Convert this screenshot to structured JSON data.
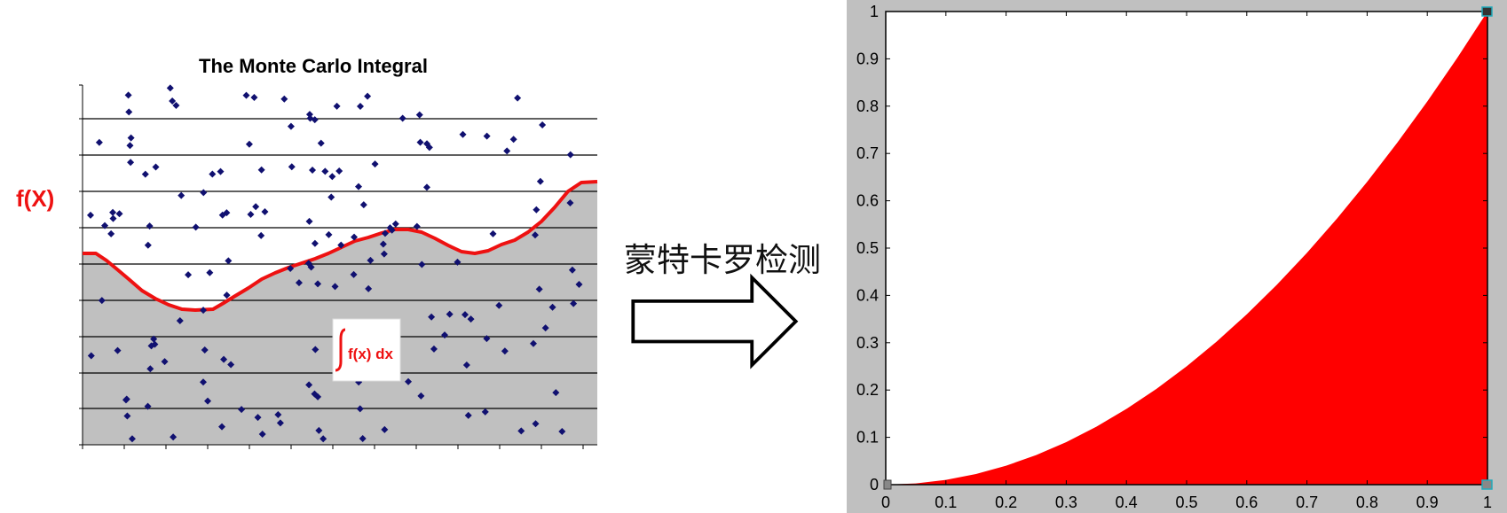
{
  "left_figure": {
    "title": "The Monte Carlo Integral",
    "function_label": "f(X)",
    "integral_label": "f(x) dx",
    "colors": {
      "curve": "#ee1111",
      "points": "#101070",
      "fill": "#c0c0c0",
      "label": "#ee1111"
    }
  },
  "arrow_caption": "蒙特卡罗检测",
  "chart_data": [
    {
      "type": "area",
      "title": "",
      "xlabel": "",
      "ylabel": "",
      "xlim": [
        0,
        1
      ],
      "ylim": [
        0,
        1
      ],
      "grid": false,
      "xticks": [
        "0",
        "0.1",
        "0.2",
        "0.3",
        "0.4",
        "0.5",
        "0.6",
        "0.7",
        "0.8",
        "0.9",
        "1"
      ],
      "yticks": [
        "0",
        "0.1",
        "0.2",
        "0.3",
        "0.4",
        "0.5",
        "0.6",
        "0.7",
        "0.8",
        "0.9",
        "1"
      ],
      "x": [
        0,
        0.05,
        0.1,
        0.15,
        0.2,
        0.25,
        0.3,
        0.35,
        0.4,
        0.45,
        0.5,
        0.55,
        0.6,
        0.65,
        0.7,
        0.75,
        0.8,
        0.85,
        0.9,
        0.95,
        1
      ],
      "y": [
        0,
        0.0025,
        0.01,
        0.0225,
        0.04,
        0.0625,
        0.09,
        0.1225,
        0.16,
        0.2025,
        0.25,
        0.3025,
        0.36,
        0.4225,
        0.49,
        0.5625,
        0.64,
        0.7225,
        0.81,
        0.9025,
        1
      ],
      "fill_color": "#ff0000",
      "background_color": "#ffffff"
    }
  ]
}
